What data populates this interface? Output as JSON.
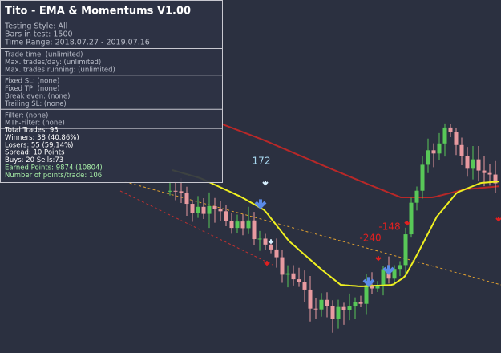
{
  "panel": {
    "title": "Tito - EMA & Momentums V1.00",
    "sections": [
      [
        "Testing Style:  All",
        "Bars in test: 1500",
        "Time Range: 2018.07.27 - 2019.07.16"
      ],
      [
        "Trade time: (unlimited)",
        "Max. trades/day: (unlimited)",
        "Max. trades running: (unlimited)"
      ],
      [
        "Fixed SL: (none)",
        "Fixed TP: (none)",
        "Break even: (none)",
        "Trailing SL: (none)"
      ],
      [
        "Filter: (none)",
        "MTF-Filter: (none)"
      ]
    ],
    "results": [
      "Total Trades: 93",
      "Winners: 38  (40.86%)",
      "Losers: 55  (59.14%)",
      "Spread: 10 Points",
      "Buys: 20 Sells:73"
    ],
    "highlights": [
      "Earned Points: 9874 (10804)",
      "Number of points/trade: 106"
    ]
  },
  "annotations": [
    "172",
    "-240",
    "-148"
  ]
}
